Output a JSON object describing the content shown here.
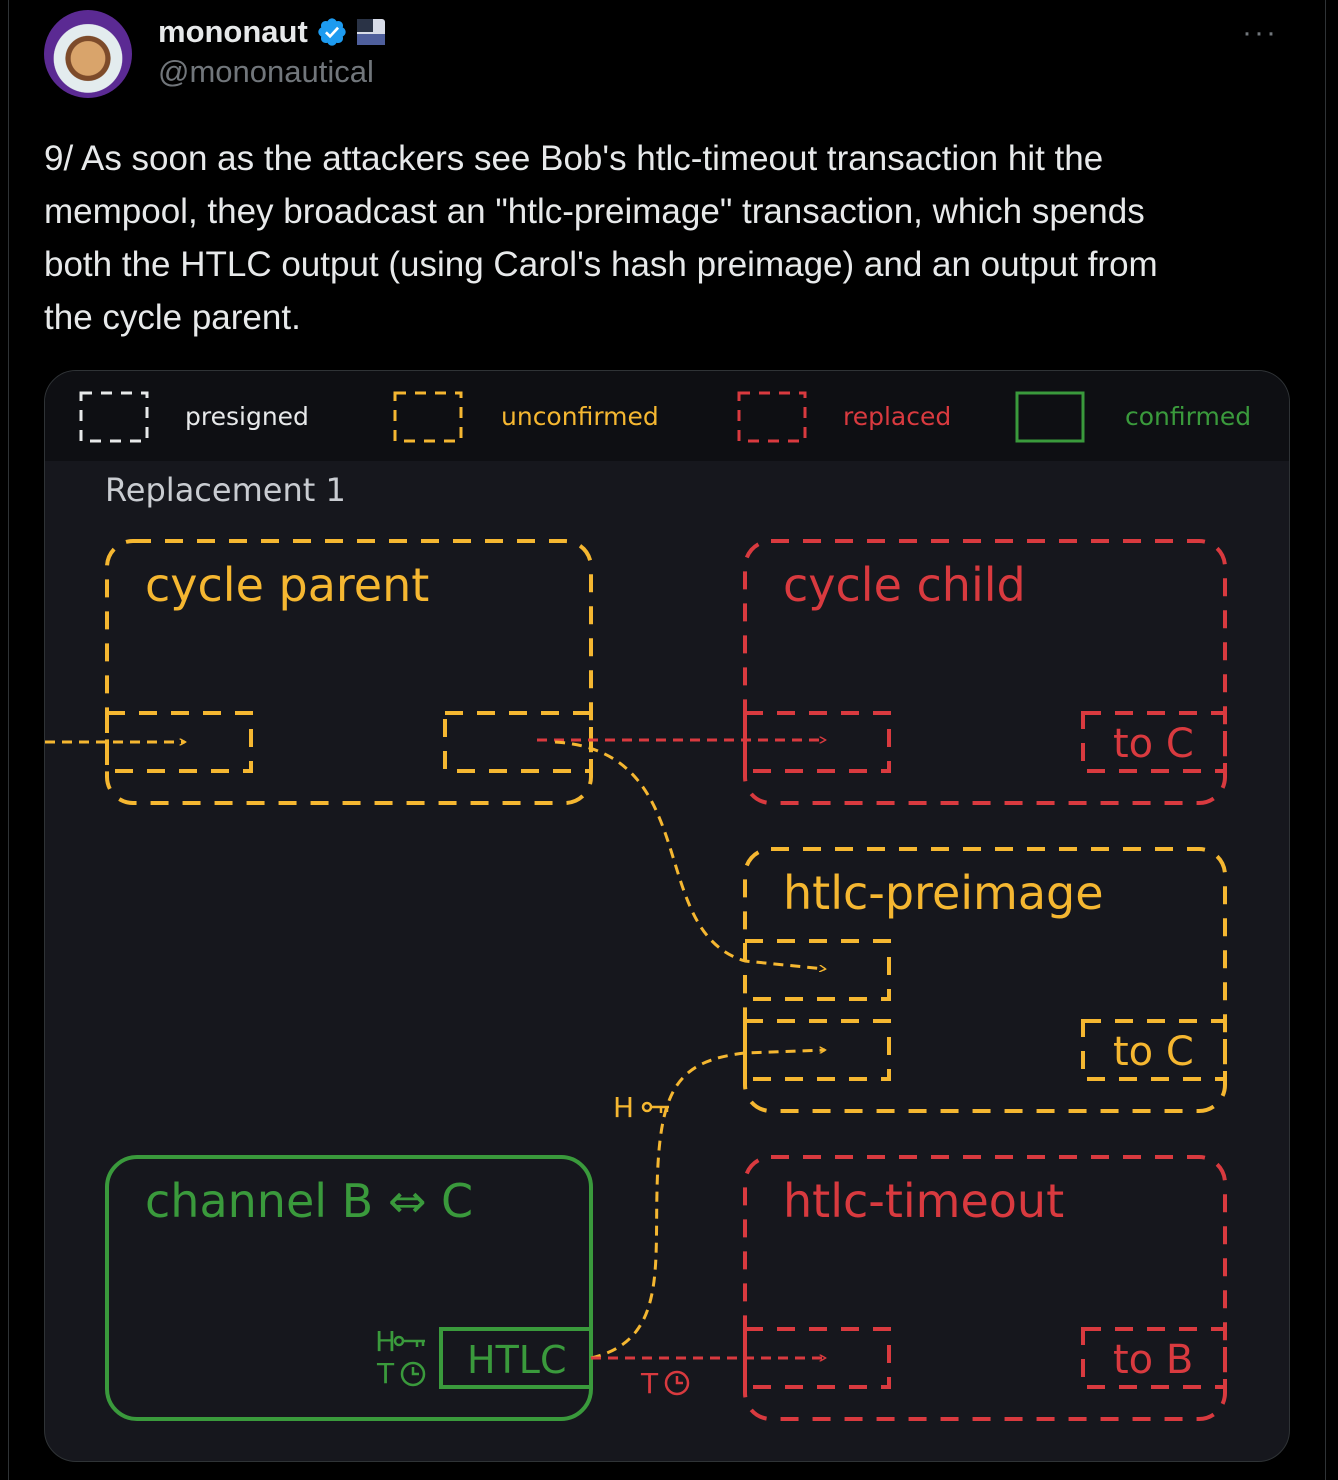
{
  "author": {
    "display_name": "mononaut",
    "handle": "@mononautical",
    "badges": [
      "verified-badge-icon",
      "flag-icon"
    ]
  },
  "more_label": "···",
  "tweet_text": "9/ As soon as the attackers see Bob's htlc-timeout transaction hit the\nmempool, they broadcast an \"htlc-preimage\" transaction, which spends\nboth the HTLC output (using Carol's hash preimage) and an output from\nthe cycle parent.",
  "diagram": {
    "legend": {
      "presigned": "presigned",
      "unconfirmed": "unconfirmed",
      "replaced": "replaced",
      "confirmed": "confirmed"
    },
    "title": "Replacement 1",
    "boxes": {
      "cycle_parent": "cycle parent",
      "cycle_child": "cycle child",
      "htlc_preimage": "htlc-preimage",
      "htlc_timeout": "htlc-timeout",
      "channel": "channel B ⇔ C"
    },
    "outputs": {
      "child_to_c": "to C",
      "preimage_to_c": "to C",
      "timeout_to_b": "to B",
      "htlc": "HTLC"
    },
    "conditions": {
      "hash": "H",
      "time": "T"
    },
    "colors": {
      "presigned": "#e7e9ea",
      "unconfirmed": "#f5b731",
      "replaced": "#d93a3f",
      "confirmed": "#3a9a3c",
      "legend_bar": "#0e0f13",
      "panel": "#16171d"
    }
  }
}
